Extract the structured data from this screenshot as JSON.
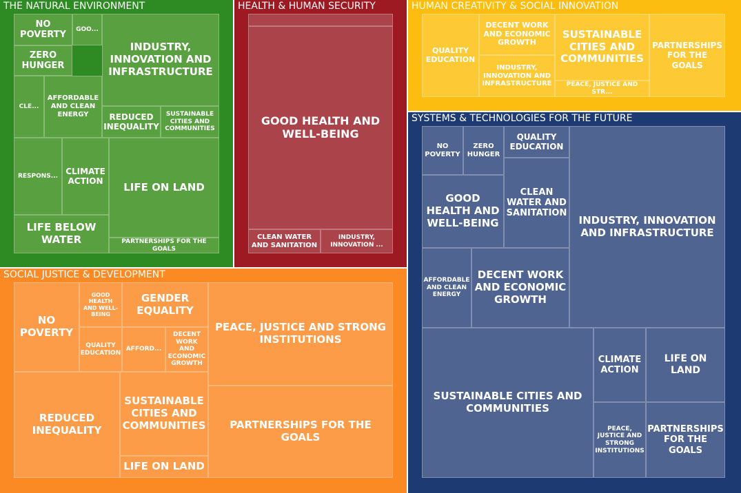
{
  "chart_data": {
    "type": "treemap",
    "groups": [
      {
        "name": "THE NATURAL ENVIRONMENT",
        "color": "#2e8b24",
        "tile_color": "#58a040",
        "items": [
          {
            "label": "NO POVERTY"
          },
          {
            "label": "GOO..."
          },
          {
            "label": "ZERO HUNGER"
          },
          {
            "label": "INDUSTRY, INNOVATION AND INFRASTRUCTURE"
          },
          {
            "label": "CLE..."
          },
          {
            "label": "AFFORDABLE AND CLEAN ENERGY"
          },
          {
            "label": "REDUCED INEQUALITY"
          },
          {
            "label": "SUSTAINABLE CITIES AND COMMUNITIES"
          },
          {
            "label": "RESPONS..."
          },
          {
            "label": "CLIMATE ACTION"
          },
          {
            "label": "LIFE ON LAND"
          },
          {
            "label": "LIFE BELOW WATER"
          },
          {
            "label": "PARTNERSHIPS FOR THE GOALS"
          }
        ]
      },
      {
        "name": "HEALTH & HUMAN SECURITY",
        "color": "#9e1a22",
        "tile_color": "#ab434a",
        "items": [
          {
            "label": ""
          },
          {
            "label": "GOOD HEALTH AND WELL-BEING"
          },
          {
            "label": "CLEAN WATER AND SANITATION"
          },
          {
            "label": "INDUSTRY, INNOVATION ..."
          }
        ]
      },
      {
        "name": "HUMAN CREATIVITY & SOCIAL INNOVATION",
        "color": "#fcbd10",
        "tile_color": "#fdc935",
        "items": [
          {
            "label": "QUALITY EDUCATION"
          },
          {
            "label": "DECENT WORK AND ECONOMIC GROWTH"
          },
          {
            "label": "INDUSTRY, INNOVATION AND INFRASTRUCTURE"
          },
          {
            "label": "SUSTAINABLE CITIES AND COMMUNITIES"
          },
          {
            "label": "PEACE, JUSTICE AND STR..."
          },
          {
            "label": "PARTNERSHIPS FOR THE GOALS"
          }
        ]
      },
      {
        "name": "SYSTEMS & TECHNOLOGIES FOR THE FUTURE",
        "color": "#1d3b72",
        "tile_color": "#4f6491",
        "items": [
          {
            "label": "NO POVERTY"
          },
          {
            "label": "ZERO HUNGER"
          },
          {
            "label": "QUALITY EDUCATION"
          },
          {
            "label": "GOOD HEALTH AND WELL-BEING"
          },
          {
            "label": "CLEAN WATER AND SANITATION"
          },
          {
            "label": "INDUSTRY, INNOVATION AND INFRASTRUCTURE"
          },
          {
            "label": "AFFORDABLE AND CLEAN ENERGY"
          },
          {
            "label": "DECENT WORK AND ECONOMIC GROWTH"
          },
          {
            "label": "SUSTAINABLE CITIES AND COMMUNITIES"
          },
          {
            "label": "CLIMATE ACTION"
          },
          {
            "label": "LIFE ON LAND"
          },
          {
            "label": "PEACE, JUSTICE AND STRONG INSTITUTIONS"
          },
          {
            "label": "PARTNERSHIPS FOR THE GOALS"
          }
        ]
      },
      {
        "name": "SOCIAL JUSTICE & DEVELOPMENT",
        "color": "#fb8a24",
        "tile_color": "#fc9c48",
        "items": [
          {
            "label": "NO POVERTY"
          },
          {
            "label": "GOOD HEALTH AND WELL-BEING"
          },
          {
            "label": "GENDER EQUALITY"
          },
          {
            "label": "QUALITY EDUCATION"
          },
          {
            "label": "AFFORD..."
          },
          {
            "label": "DECENT WORK AND ECONOMIC GROWTH"
          },
          {
            "label": "PEACE, JUSTICE AND STRONG INSTITUTIONS"
          },
          {
            "label": "REDUCED INEQUALITY"
          },
          {
            "label": "SUSTAINABLE CITIES AND COMMUNITIES"
          },
          {
            "label": "PARTNERSHIPS FOR THE GOALS"
          },
          {
            "label": "LIFE ON LAND"
          }
        ]
      }
    ]
  }
}
